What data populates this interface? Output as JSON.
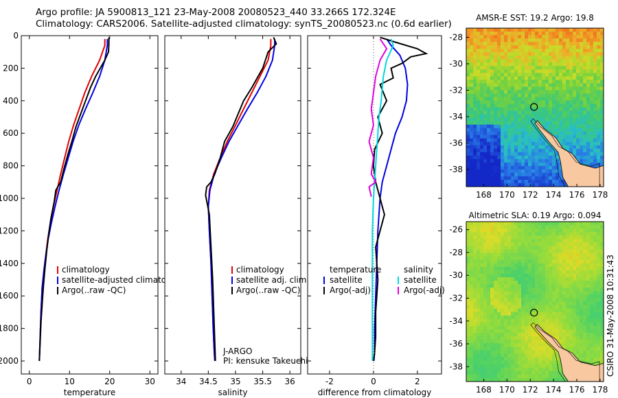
{
  "title_lines": [
    "Argo profile: JA 5900813_121 23-May-2008 20080523_440 33.266S 172.324E",
    "Climatology: CARS2006. Satellite-adjusted climatology: synTS_20080523.nc (0.6d earlier)"
  ],
  "side_stamp": "CSIRO 31-May-2008 10:31:43",
  "chart_data": [
    {
      "type": "line",
      "xlabel": "temperature",
      "ylabel": "",
      "xlim": [
        -2,
        32
      ],
      "ylim": [
        0,
        2080
      ],
      "y_reversed": true,
      "xticks": [
        0,
        10,
        20,
        30
      ],
      "yticks": [
        0,
        200,
        400,
        600,
        800,
        1000,
        1200,
        1400,
        1600,
        1800,
        2000
      ],
      "legend": {
        "placement": "lower-right",
        "entries": [
          "climatology",
          "satellite-adjusted climatology",
          "Argo(..raw -QC)"
        ]
      },
      "series": [
        {
          "name": "climatology",
          "color": "#e00000",
          "x": [
            18.8,
            18.8,
            17.5,
            15.5,
            13.8,
            12.4,
            11.0,
            9.8,
            8.8,
            7.8,
            6.9,
            6.0,
            5.3,
            4.6,
            4.1,
            3.6,
            3.2,
            2.9,
            2.7,
            2.5
          ],
          "y": [
            20,
            60,
            150,
            250,
            350,
            450,
            550,
            650,
            750,
            850,
            950,
            1050,
            1150,
            1250,
            1350,
            1450,
            1550,
            1700,
            1850,
            2000
          ]
        },
        {
          "name": "satellite-adjusted climatology",
          "color": "#0000e0",
          "x": [
            19.4,
            19.4,
            18.8,
            17.5,
            15.8,
            14.0,
            12.3,
            10.9,
            9.7,
            8.5,
            7.4,
            6.4,
            5.5,
            4.7,
            4.1,
            3.6,
            3.2,
            2.9,
            2.7,
            2.5
          ],
          "y": [
            20,
            60,
            150,
            250,
            350,
            450,
            550,
            650,
            750,
            850,
            950,
            1050,
            1150,
            1250,
            1350,
            1450,
            1550,
            1700,
            1850,
            2000
          ]
        },
        {
          "name": "Argo(..raw -QC)",
          "color": "#000000",
          "x": [
            19.8,
            19.8,
            19.7,
            18.8,
            16.5,
            15.2,
            14.0,
            12.8,
            11.6,
            10.6,
            9.6,
            8.6,
            7.8,
            6.6,
            6.2,
            5.4,
            4.8,
            4.3,
            3.9,
            3.5,
            3.2,
            2.9,
            2.7,
            2.5
          ],
          "y": [
            10,
            50,
            100,
            150,
            250,
            320,
            400,
            480,
            560,
            650,
            730,
            820,
            900,
            950,
            1020,
            1120,
            1220,
            1330,
            1430,
            1540,
            1650,
            1760,
            1880,
            2000
          ]
        }
      ]
    },
    {
      "type": "line",
      "xlabel": "salinity",
      "ylabel": "",
      "xlim": [
        33.7,
        36.2
      ],
      "ylim": [
        0,
        2080
      ],
      "y_reversed": true,
      "xticks": [
        34,
        34.5,
        35,
        35.5,
        36
      ],
      "xticklabels": [
        "34",
        "34.5",
        "35",
        "35.5",
        "36"
      ],
      "legend": {
        "placement": "lower-right",
        "entries": [
          "climatology",
          "satellite adj. clim.",
          "Argo(..raw -QC)"
        ]
      },
      "annotation": {
        "lines": [
          "J-ARGO",
          "PI: kensuke Takeuchi"
        ],
        "placement": "bottom-right"
      },
      "series": [
        {
          "name": "climatology",
          "color": "#e00000",
          "x": [
            35.65,
            35.65,
            35.6,
            35.45,
            35.3,
            35.15,
            35.0,
            34.85,
            34.72,
            34.6,
            34.52,
            34.5,
            34.52,
            34.55,
            34.57,
            34.59,
            34.61,
            34.62
          ],
          "y": [
            20,
            60,
            150,
            250,
            350,
            450,
            550,
            650,
            750,
            850,
            950,
            1050,
            1200,
            1400,
            1600,
            1800,
            1950,
            2000
          ]
        },
        {
          "name": "satellite adj. clim.",
          "color": "#0000e0",
          "x": [
            35.72,
            35.72,
            35.68,
            35.56,
            35.4,
            35.22,
            35.05,
            34.88,
            34.74,
            34.61,
            34.53,
            34.5,
            34.52,
            34.55,
            34.57,
            34.59,
            34.61,
            34.62
          ],
          "y": [
            20,
            60,
            150,
            250,
            350,
            450,
            550,
            650,
            750,
            850,
            950,
            1050,
            1200,
            1400,
            1600,
            1800,
            1950,
            2000
          ]
        },
        {
          "name": "Argo(..raw -QC)",
          "color": "#000000",
          "x": [
            35.7,
            35.75,
            35.6,
            35.5,
            35.3,
            35.15,
            35.05,
            34.95,
            34.8,
            34.72,
            34.62,
            34.55,
            34.47,
            34.45,
            34.52,
            34.55,
            34.58,
            34.6,
            34.62,
            34.63
          ],
          "y": [
            10,
            50,
            100,
            200,
            320,
            400,
            480,
            560,
            650,
            750,
            850,
            900,
            930,
            980,
            1100,
            1300,
            1500,
            1700,
            1900,
            2000
          ]
        }
      ]
    },
    {
      "type": "line",
      "xlabel": "difference from climatology",
      "ylabel": "",
      "xlim": [
        -3,
        3.1
      ],
      "ylim": [
        0,
        2080
      ],
      "y_reversed": true,
      "xticks": [
        -2,
        0,
        2
      ],
      "xticklabels": [
        "-2",
        "0",
        "2"
      ],
      "zero_reference": "dotted",
      "legend": {
        "placement": "lower-right",
        "groups": [
          {
            "heading": "temperature",
            "entries": [
              "satellite",
              "Argo(-adj)"
            ]
          },
          {
            "heading": "salinity",
            "entries": [
              "satellite",
              "Argo(-adj)"
            ]
          }
        ]
      },
      "series": [
        {
          "name": "temperature satellite",
          "color": "#0000e0",
          "x": [
            0.6,
            0.8,
            1.2,
            1.45,
            1.55,
            1.5,
            1.3,
            1.0,
            0.8,
            0.6,
            0.4,
            0.3,
            0.2,
            0.15,
            0.1,
            0.05,
            0.05,
            0.02
          ],
          "y": [
            20,
            60,
            120,
            200,
            300,
            400,
            500,
            600,
            700,
            800,
            900,
            1000,
            1200,
            1400,
            1600,
            1800,
            1950,
            2000
          ]
        },
        {
          "name": "temperature Argo(-adj)",
          "color": "#000000",
          "x": [
            0.3,
            1.0,
            2.0,
            2.4,
            1.7,
            1.3,
            0.8,
            0.9,
            0.3,
            0.6,
            0.2,
            0.4,
            0.05,
            0.0,
            0.1,
            0.3,
            0.5,
            0.3,
            0.1,
            0.2,
            0.1,
            0.1,
            0.05,
            0.0
          ],
          "y": [
            10,
            40,
            80,
            110,
            130,
            170,
            200,
            260,
            300,
            400,
            500,
            600,
            700,
            800,
            900,
            1000,
            1100,
            1200,
            1300,
            1500,
            1700,
            1850,
            1950,
            2000
          ]
        },
        {
          "name": "salinity satellite",
          "color": "#00d8e0",
          "x": [
            0.8,
            0.9,
            0.6,
            0.45,
            0.35,
            0.25,
            0.2,
            0.15,
            0.1,
            0.05,
            0.0,
            -0.05,
            -0.05,
            -0.05,
            -0.05
          ],
          "y": [
            20,
            60,
            150,
            250,
            400,
            500,
            600,
            700,
            800,
            900,
            1000,
            1200,
            1500,
            1800,
            2000
          ]
        },
        {
          "name": "salinity Argo(-adj)",
          "color": "#e000e0",
          "x": [
            0.3,
            0.6,
            0.3,
            0.1,
            0.0,
            -0.1,
            0.0,
            -0.2,
            0.0,
            -0.1,
            0.1,
            -0.2,
            -0.15,
            -0.1
          ],
          "y": [
            20,
            80,
            150,
            250,
            350,
            450,
            550,
            650,
            750,
            850,
            900,
            930,
            960,
            990
          ]
        }
      ]
    },
    {
      "type": "heatmap",
      "title": "AMSR-E SST: 19.2 Argo: 19.8",
      "xlim": [
        166.5,
        178.3
      ],
      "ylim": [
        -39.3,
        -27.3
      ],
      "xticks": [
        168,
        170,
        172,
        174,
        176,
        178
      ],
      "yticks": [
        -28,
        -30,
        -32,
        -34,
        -36,
        -38
      ],
      "marker": {
        "lon": 172.324,
        "lat": -33.266,
        "shape": "circle"
      }
    },
    {
      "type": "heatmap",
      "title": "Altimetric SLA: 0.19 Argo: 0.094",
      "xlim": [
        166.5,
        178.3
      ],
      "ylim": [
        -39.3,
        -25.3
      ],
      "xticks": [
        168,
        170,
        172,
        174,
        176,
        178
      ],
      "yticks": [
        -26,
        -28,
        -30,
        -32,
        -34,
        -36,
        -38
      ],
      "marker": {
        "lon": 172.324,
        "lat": -33.266,
        "shape": "circle"
      }
    }
  ]
}
